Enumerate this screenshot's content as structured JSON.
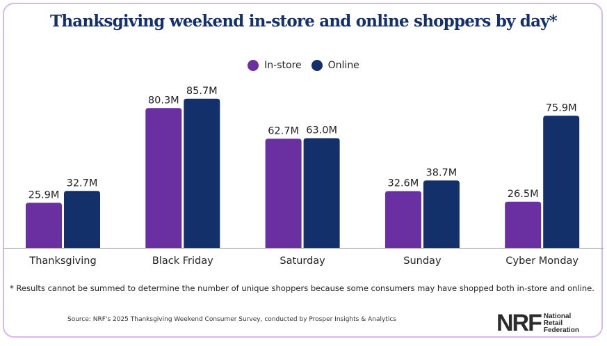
{
  "chart_data": {
    "type": "bar",
    "title": "Thanksgiving weekend in-store and online shoppers by day*",
    "categories": [
      "Thanksgiving",
      "Black Friday",
      "Saturday",
      "Sunday",
      "Cyber Monday"
    ],
    "series": [
      {
        "name": "In-store",
        "color": "#6a2fa0",
        "values": [
          25.9,
          80.3,
          62.7,
          32.6,
          26.5
        ],
        "labels": [
          "25.9M",
          "80.3M",
          "62.7M",
          "32.6M",
          "26.5M"
        ]
      },
      {
        "name": "Online",
        "color": "#13306b",
        "values": [
          32.7,
          85.7,
          63.0,
          38.7,
          75.9
        ],
        "labels": [
          "32.7M",
          "85.7M",
          "63.0M",
          "38.7M",
          "75.9M"
        ]
      }
    ],
    "ylim": [
      0,
      90
    ],
    "legend_position": "top-center",
    "grid": false
  },
  "footnote": "* Results cannot be summed to determine the number of unique shoppers because some consumers may have shopped both in-store and online.",
  "source": "Source: NRF's 2025 Thanksgiving Weekend Consumer Survey, conducted by Prosper Insights & Analytics",
  "logo": {
    "mark": "NRF",
    "lines": [
      "National",
      "Retail",
      "Federation"
    ]
  }
}
